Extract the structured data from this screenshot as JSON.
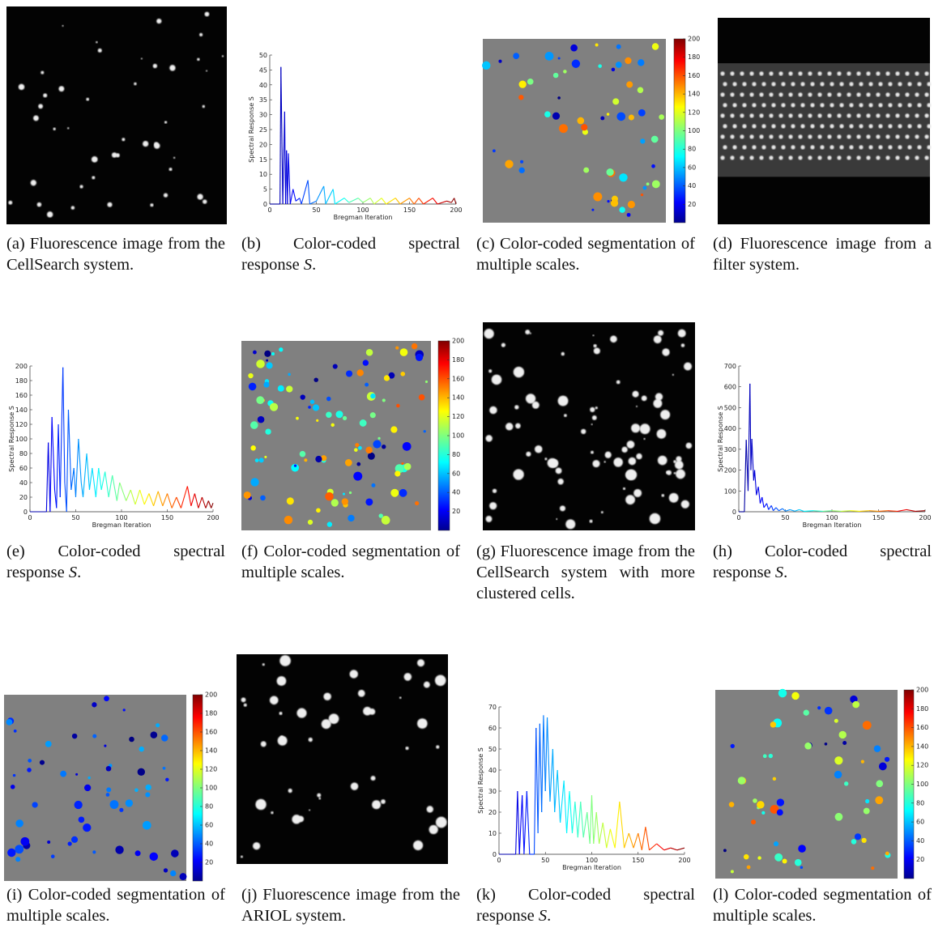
{
  "panels": [
    {
      "label": "(a)",
      "caption": {
        "text": "Fluorescence image from the CellSearch system."
      }
    },
    {
      "label": "(b)",
      "caption": {
        "text": "Color-coded spectral response",
        "symbol": "S",
        "end": "."
      },
      "chart": {
        "type": "line",
        "xlabel": "Bregman Iteration",
        "ylabel": "Spectral Response S",
        "colormap": "jet",
        "xlim": [
          0,
          200
        ],
        "xticks": [
          0,
          50,
          100,
          150,
          200
        ],
        "ylim": [
          0,
          50
        ],
        "yticks": [
          0,
          5,
          10,
          15,
          20,
          25,
          30,
          35,
          40,
          45,
          50
        ],
        "x": [
          0,
          11,
          12,
          14,
          16,
          17,
          18,
          19,
          20,
          22,
          25,
          28,
          32,
          34,
          41,
          43,
          50,
          58,
          60,
          68,
          70,
          80,
          85,
          95,
          100,
          108,
          112,
          120,
          125,
          135,
          140,
          150,
          155,
          160,
          165,
          175,
          180,
          190,
          195,
          198,
          200
        ],
        "values": [
          0,
          0,
          46,
          0,
          31,
          0,
          18,
          0,
          17,
          0,
          5,
          1,
          2,
          0,
          8,
          0,
          1,
          6,
          0,
          5,
          0,
          2,
          0.5,
          2,
          0.5,
          2,
          0,
          2,
          0,
          2,
          0,
          2,
          0,
          2,
          0,
          2,
          0,
          1,
          0.5,
          2,
          0
        ]
      }
    },
    {
      "label": "(c)",
      "caption": {
        "text": "Color-coded segmentation of multiple scales."
      },
      "colorbar": {
        "colormap": "jet",
        "lim": [
          0,
          200
        ],
        "ticks": [
          20,
          40,
          60,
          80,
          100,
          120,
          140,
          160,
          180,
          200
        ]
      }
    },
    {
      "label": "(d)",
      "caption": {
        "text": "Fluorescence image from a filter system."
      }
    },
    {
      "label": "(e)",
      "caption": {
        "text": "Color-coded spectral response",
        "symbol": "S",
        "end": "."
      },
      "chart": {
        "type": "line",
        "xlabel": "Bregman Iteration",
        "ylabel": "Spectral Response S",
        "colormap": "jet",
        "xlim": [
          0,
          200
        ],
        "xticks": [
          0,
          50,
          100,
          150,
          200
        ],
        "ylim": [
          0,
          200
        ],
        "yticks": [
          0,
          20,
          40,
          60,
          80,
          100,
          120,
          140,
          160,
          180,
          200
        ],
        "x": [
          0,
          18,
          20,
          22,
          24,
          27,
          29,
          31,
          33,
          36,
          38,
          40,
          42,
          45,
          48,
          50,
          53,
          56,
          58,
          62,
          65,
          68,
          72,
          75,
          78,
          82,
          86,
          90,
          95,
          98,
          105,
          110,
          115,
          120,
          125,
          130,
          135,
          140,
          145,
          150,
          155,
          160,
          165,
          172,
          176,
          180,
          184,
          188,
          192,
          195,
          198,
          200
        ],
        "values": [
          0,
          0,
          95,
          0,
          130,
          30,
          5,
          120,
          20,
          198,
          40,
          0,
          140,
          30,
          60,
          20,
          100,
          40,
          20,
          80,
          30,
          60,
          20,
          60,
          30,
          55,
          20,
          50,
          15,
          40,
          15,
          30,
          10,
          30,
          10,
          25,
          8,
          28,
          8,
          25,
          5,
          20,
          5,
          35,
          8,
          25,
          5,
          20,
          5,
          15,
          5,
          12
        ]
      }
    },
    {
      "label": "(f)",
      "caption": {
        "text": "Color-coded segmentation of multiple scales."
      },
      "colorbar": {
        "colormap": "jet",
        "lim": [
          0,
          200
        ],
        "ticks": [
          20,
          40,
          60,
          80,
          100,
          120,
          140,
          160,
          180,
          200
        ]
      }
    },
    {
      "label": "(g)",
      "caption": {
        "text": "Fluorescence image from the CellSearch system with more clustered cells."
      }
    },
    {
      "label": "(h)",
      "caption": {
        "text": "Color-coded spectral response",
        "symbol": "S",
        "end": "."
      },
      "chart": {
        "type": "line",
        "xlabel": "Bregman Iteration",
        "ylabel": "Spectral Response S",
        "colormap": "jet",
        "xlim": [
          0,
          200
        ],
        "xticks": [
          0,
          50,
          100,
          150,
          200
        ],
        "ylim": [
          0,
          700
        ],
        "yticks": [
          0,
          100,
          200,
          300,
          400,
          500,
          600,
          700
        ],
        "x": [
          0,
          6,
          8,
          10,
          12,
          13,
          14,
          16,
          17,
          19,
          21,
          23,
          25,
          27,
          30,
          32,
          35,
          37,
          40,
          43,
          47,
          50,
          55,
          60,
          65,
          70,
          80,
          90,
          100,
          110,
          120,
          130,
          140,
          150,
          160,
          170,
          180,
          190,
          200
        ],
        "values": [
          0,
          0,
          345,
          100,
          615,
          200,
          350,
          150,
          200,
          80,
          120,
          40,
          70,
          20,
          40,
          10,
          30,
          5,
          20,
          5,
          15,
          3,
          10,
          3,
          10,
          2,
          5,
          2,
          5,
          2,
          5,
          2,
          5,
          2,
          5,
          2,
          10,
          2,
          5
        ]
      }
    },
    {
      "label": "(i)",
      "caption": {
        "text": "Color-coded segmentation of multiple scales."
      },
      "colorbar": {
        "colormap": "jet",
        "lim": [
          0,
          200
        ],
        "ticks": [
          20,
          40,
          60,
          80,
          100,
          120,
          140,
          160,
          180,
          200
        ]
      }
    },
    {
      "label": "(j)",
      "caption": {
        "text": "Fluorescence image from the ARIOL system."
      }
    },
    {
      "label": "(k)",
      "caption": {
        "text": "Color-coded spectral response",
        "symbol": "S",
        "end": "."
      },
      "chart": {
        "type": "line",
        "xlabel": "Bregman Iteration",
        "ylabel": "Spectral Response S",
        "colormap": "jet",
        "xlim": [
          0,
          200
        ],
        "xticks": [
          0,
          50,
          100,
          150,
          200
        ],
        "ylim": [
          0,
          70
        ],
        "yticks": [
          0,
          10,
          20,
          30,
          40,
          50,
          60,
          70
        ],
        "x": [
          0,
          18,
          20,
          22,
          25,
          27,
          30,
          33,
          38,
          40,
          42,
          44,
          46,
          48,
          50,
          52,
          55,
          58,
          60,
          63,
          66,
          70,
          73,
          76,
          79,
          82,
          85,
          88,
          91,
          95,
          98,
          100,
          102,
          105,
          108,
          112,
          116,
          120,
          125,
          130,
          135,
          140,
          145,
          150,
          154,
          158,
          162,
          170,
          178,
          185,
          192,
          200
        ],
        "values": [
          0,
          0,
          30,
          0,
          28,
          0,
          30,
          0,
          0,
          60,
          10,
          62,
          20,
          66,
          30,
          65,
          25,
          50,
          20,
          40,
          15,
          35,
          10,
          30,
          10,
          25,
          8,
          25,
          8,
          20,
          5,
          28,
          5,
          20,
          5,
          15,
          3,
          12,
          3,
          25,
          3,
          10,
          3,
          10,
          2,
          13,
          2,
          5,
          2,
          3,
          2,
          3
        ]
      }
    },
    {
      "label": "(l)",
      "caption": {
        "text": "Color-coded segmentation of multiple scales."
      },
      "colorbar": {
        "colormap": "jet",
        "lim": [
          0,
          200
        ],
        "ticks": [
          20,
          40,
          60,
          80,
          100,
          120,
          140,
          160,
          180,
          200
        ]
      }
    }
  ]
}
